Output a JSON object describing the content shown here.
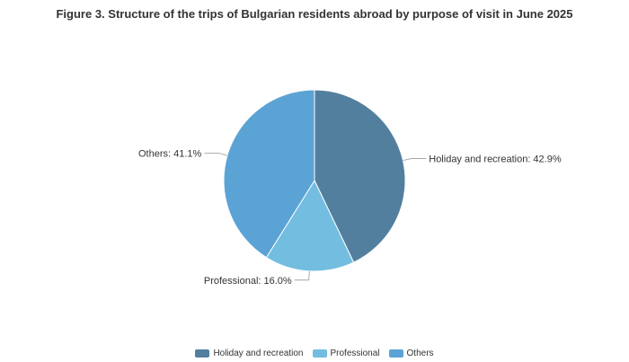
{
  "chart_data": {
    "type": "pie",
    "title": "Figure 3. Structure of the trips of Bulgarian residents abroad by purpose of visit in June 2025",
    "series": [
      {
        "name": "Holiday and recreation",
        "value": 42.9,
        "label": "Holiday and recreation: 42.9%",
        "color": "#537F9E"
      },
      {
        "name": "Professional",
        "value": 16.0,
        "label": "Professional: 16.0%",
        "color": "#72BDE0"
      },
      {
        "name": "Others",
        "value": 41.1,
        "label": "Others: 41.1%",
        "color": "#5BA3D5"
      }
    ],
    "legend_position": "bottom"
  }
}
